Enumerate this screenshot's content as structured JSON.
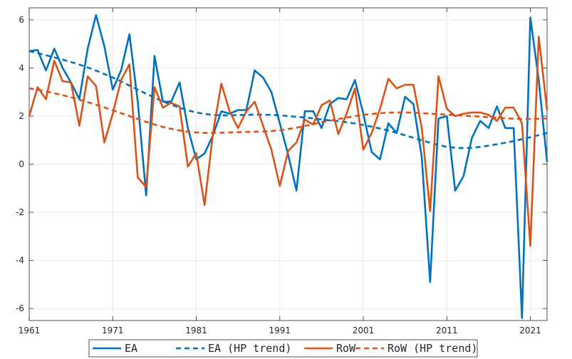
{
  "colors": {
    "EA": "#0072BD",
    "RoW": "#D95319",
    "grid": "#ebebeb",
    "axis": "#262626"
  },
  "legend_placement": "bottom",
  "chart_data": {
    "type": "line",
    "xlim": [
      1961,
      2023
    ],
    "ylim": [
      -6.5,
      6.5
    ],
    "xticks": [
      1961,
      1971,
      1981,
      1991,
      2001,
      2011,
      2021
    ],
    "yticks": [
      6,
      4,
      2,
      0,
      -2,
      -4,
      -6
    ],
    "xtick_labels": [
      "1961",
      "1971",
      "1981",
      "1991",
      "2001",
      "2011",
      "2021"
    ],
    "ytick_labels": [
      "6",
      "4",
      "2",
      "0",
      "-2",
      "-4",
      "-6"
    ],
    "grid": true,
    "title": "",
    "xlabel": "",
    "ylabel": "",
    "x": [
      1961,
      1962,
      1963,
      1964,
      1965,
      1966,
      1967,
      1968,
      1969,
      1970,
      1971,
      1972,
      1973,
      1974,
      1975,
      1976,
      1977,
      1978,
      1979,
      1980,
      1981,
      1982,
      1983,
      1984,
      1985,
      1986,
      1987,
      1988,
      1989,
      1990,
      1991,
      1992,
      1993,
      1994,
      1995,
      1996,
      1997,
      1998,
      1999,
      2000,
      2001,
      2002,
      2003,
      2004,
      2005,
      2006,
      2007,
      2008,
      2009,
      2010,
      2011,
      2012,
      2013,
      2014,
      2015,
      2016,
      2017,
      2018,
      2019,
      2020,
      2021,
      2022,
      2023
    ],
    "series": [
      {
        "name": "EA",
        "key": "EA",
        "style": "solid",
        "values": [
          4.7,
          4.75,
          3.9,
          4.8,
          4.0,
          3.4,
          2.7,
          4.8,
          6.2,
          4.9,
          3.1,
          3.9,
          5.4,
          2.6,
          -1.3,
          4.5,
          2.6,
          2.6,
          3.4,
          1.5,
          0.2,
          0.45,
          1.2,
          2.2,
          2.1,
          2.25,
          2.25,
          3.9,
          3.6,
          3.0,
          1.7,
          0.4,
          -1.1,
          2.2,
          2.2,
          1.5,
          2.5,
          2.75,
          2.7,
          3.5,
          2.1,
          0.5,
          0.2,
          1.7,
          1.3,
          2.8,
          2.5,
          0.3,
          -4.9,
          1.9,
          2.0,
          -1.1,
          -0.5,
          1.1,
          1.8,
          1.5,
          2.4,
          1.5,
          1.5,
          -6.4,
          6.1,
          3.5,
          0.1
        ]
      },
      {
        "name": "EA (HP trend)",
        "key": "EA",
        "style": "dashed",
        "values": [
          4.7,
          4.62,
          4.53,
          4.44,
          4.35,
          4.25,
          4.14,
          4.02,
          3.89,
          3.75,
          3.6,
          3.44,
          3.27,
          3.1,
          2.93,
          2.77,
          2.61,
          2.47,
          2.35,
          2.24,
          2.15,
          2.09,
          2.05,
          2.03,
          2.03,
          2.04,
          2.05,
          2.06,
          2.06,
          2.05,
          2.03,
          2.0,
          1.97,
          1.94,
          1.9,
          1.86,
          1.82,
          1.79,
          1.74,
          1.69,
          1.63,
          1.56,
          1.48,
          1.4,
          1.3,
          1.2,
          1.1,
          0.99,
          0.89,
          0.8,
          0.72,
          0.68,
          0.67,
          0.68,
          0.72,
          0.77,
          0.83,
          0.89,
          0.96,
          1.04,
          1.12,
          1.21,
          1.3
        ]
      },
      {
        "name": "RoW",
        "key": "RoW",
        "style": "solid",
        "values": [
          2.0,
          3.2,
          2.7,
          4.3,
          3.45,
          3.4,
          1.6,
          3.65,
          3.25,
          0.9,
          2.1,
          3.5,
          4.15,
          -0.55,
          -0.95,
          3.2,
          2.35,
          2.55,
          2.4,
          -0.1,
          0.45,
          -1.7,
          1.3,
          3.35,
          2.2,
          1.5,
          2.2,
          2.6,
          1.6,
          0.6,
          -0.9,
          0.55,
          0.9,
          1.85,
          1.65,
          2.45,
          2.65,
          1.25,
          2.1,
          3.15,
          0.6,
          1.3,
          2.3,
          3.55,
          3.15,
          3.3,
          3.3,
          1.5,
          -1.95,
          3.65,
          2.3,
          2.0,
          2.1,
          2.15,
          2.15,
          2.05,
          1.8,
          2.35,
          2.35,
          1.7,
          -3.4,
          5.3,
          2.25
        ]
      },
      {
        "name": "RoW (HP trend)",
        "key": "RoW",
        "style": "dashed",
        "values": [
          3.15,
          3.1,
          3.03,
          2.95,
          2.87,
          2.78,
          2.68,
          2.58,
          2.47,
          2.36,
          2.24,
          2.12,
          2.0,
          1.88,
          1.76,
          1.65,
          1.55,
          1.47,
          1.4,
          1.35,
          1.32,
          1.3,
          1.3,
          1.31,
          1.32,
          1.33,
          1.34,
          1.35,
          1.36,
          1.38,
          1.41,
          1.46,
          1.52,
          1.59,
          1.66,
          1.74,
          1.81,
          1.88,
          1.94,
          2.0,
          2.05,
          2.09,
          2.12,
          2.14,
          2.15,
          2.15,
          2.14,
          2.12,
          2.1,
          2.08,
          2.06,
          2.04,
          2.02,
          2.0,
          1.98,
          1.95,
          1.93,
          1.91,
          1.89,
          1.88,
          1.88,
          1.89,
          1.9
        ]
      }
    ]
  }
}
